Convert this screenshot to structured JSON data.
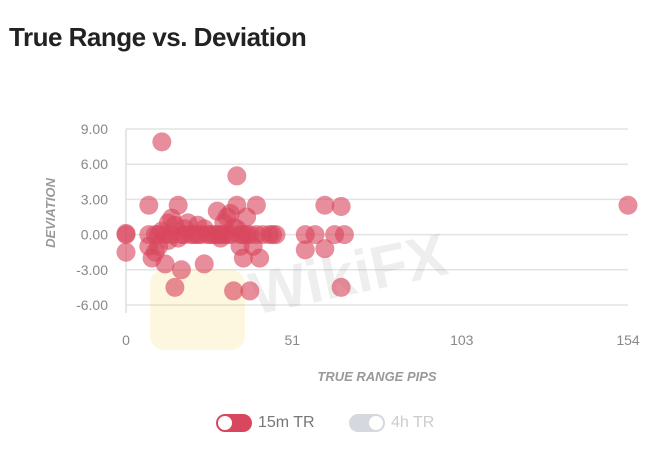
{
  "chart_data": {
    "type": "scatter",
    "title": "True Range vs. Deviation",
    "xlabel": "TRUE RANGE PIPS",
    "ylabel": "DEVIATION",
    "xlim": [
      0,
      154
    ],
    "ylim": [
      -6,
      9
    ],
    "xticks": [
      "0",
      "51",
      "103",
      "154"
    ],
    "yticks": [
      "9.00",
      "6.00",
      "3.00",
      "0.00",
      "-3.00",
      "-6.00"
    ],
    "grid": true,
    "legend_placement": "bottom",
    "series": [
      {
        "name": "15m TR",
        "color": "#d9475e",
        "enabled": true,
        "points": [
          [
            0,
            0
          ],
          [
            0,
            -1.5
          ],
          [
            0,
            0.1
          ],
          [
            7,
            2.5
          ],
          [
            7,
            0
          ],
          [
            8,
            -2
          ],
          [
            7,
            -1
          ],
          [
            11,
            7.9
          ],
          [
            12,
            -2.5
          ],
          [
            14,
            0
          ],
          [
            15,
            -4.5
          ],
          [
            16,
            2.5
          ],
          [
            17,
            -3
          ],
          [
            18,
            0.5
          ],
          [
            19,
            1
          ],
          [
            20,
            0
          ],
          [
            22,
            0.8
          ],
          [
            24,
            -2.5
          ],
          [
            26,
            0
          ],
          [
            28,
            2
          ],
          [
            30,
            1
          ],
          [
            32,
            1.8
          ],
          [
            33,
            -4.8
          ],
          [
            34,
            2.5
          ],
          [
            34,
            0.5
          ],
          [
            34,
            5
          ],
          [
            35,
            0
          ],
          [
            36,
            -2
          ],
          [
            37,
            1.5
          ],
          [
            38,
            -4.8
          ],
          [
            39,
            -1
          ],
          [
            40,
            2.5
          ],
          [
            41,
            -2
          ],
          [
            44,
            0
          ],
          [
            46,
            0
          ],
          [
            55,
            0
          ],
          [
            55,
            -1.3
          ],
          [
            58,
            0
          ],
          [
            61,
            2.5
          ],
          [
            61,
            -1.2
          ],
          [
            64,
            0
          ],
          [
            66,
            2.4
          ],
          [
            66,
            -4.5
          ],
          [
            67,
            0
          ],
          [
            154,
            2.5
          ],
          [
            9,
            0
          ],
          [
            10,
            0
          ],
          [
            11,
            0.3
          ],
          [
            12,
            0
          ],
          [
            13,
            1
          ],
          [
            13,
            -0.5
          ],
          [
            15,
            0.8
          ],
          [
            16,
            -0.3
          ],
          [
            17,
            0
          ],
          [
            18,
            0
          ],
          [
            21,
            0
          ],
          [
            23,
            0
          ],
          [
            24,
            0.5
          ],
          [
            25,
            0
          ],
          [
            27,
            0
          ],
          [
            28,
            0
          ],
          [
            29,
            0
          ],
          [
            30,
            0
          ],
          [
            31,
            0
          ],
          [
            32,
            0
          ],
          [
            33,
            0.6
          ],
          [
            36,
            0
          ],
          [
            37,
            0
          ],
          [
            38,
            0
          ],
          [
            40,
            0
          ],
          [
            42,
            0
          ],
          [
            45,
            0
          ],
          [
            9,
            -1.5
          ],
          [
            10,
            -1
          ],
          [
            14,
            1.4
          ],
          [
            22,
            0
          ],
          [
            31,
            1.5
          ],
          [
            35,
            -1
          ],
          [
            29,
            -0.3
          ]
        ]
      },
      {
        "name": "4h TR",
        "color": "#d5d8de",
        "enabled": false,
        "points": []
      }
    ]
  }
}
